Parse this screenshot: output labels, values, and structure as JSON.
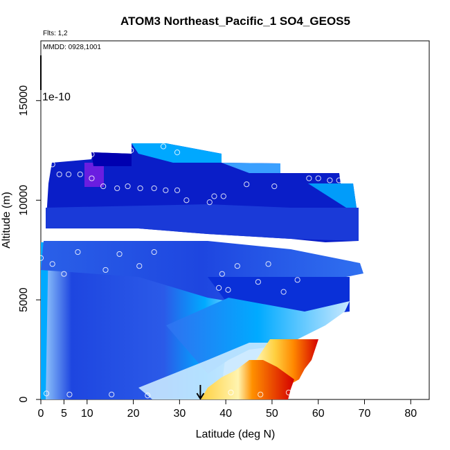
{
  "chart_data": {
    "type": "heatmap",
    "title": "ATOM3 Northeast_Pacific_1 SO4_GEOS5",
    "flights_label": "Flts: 1,2",
    "dates_label": "MMDD: 0928,1001",
    "xlabel": "Latitude (deg N)",
    "ylabel": "Altitude (m)",
    "xlim": [
      0,
      84
    ],
    "ylim": [
      0,
      18000
    ],
    "xticks": [
      0,
      5,
      10,
      20,
      30,
      40,
      50,
      60,
      70,
      80
    ],
    "yticks": [
      0,
      5000,
      10000,
      15000
    ],
    "colorbar_label": "1e-10",
    "arrow_latitude": 34.5,
    "colors": {
      "deep_blue": "#0000c8",
      "mid_blue": "#1e46e0",
      "light_blue": "#00aaff",
      "pale_blue": "#c8e8ff",
      "purple": "#6a1ee0",
      "yellow": "#ffe070",
      "orange": "#ff8800",
      "red": "#d40000"
    },
    "observations": [
      [
        1.2,
        300
      ],
      [
        6.2,
        250
      ],
      [
        15.3,
        250
      ],
      [
        23.1,
        200
      ],
      [
        47.5,
        250
      ],
      [
        53.6,
        350
      ],
      [
        41.1,
        350
      ],
      [
        0,
        7100
      ],
      [
        2.5,
        6800
      ],
      [
        5,
        6300
      ],
      [
        8,
        7400
      ],
      [
        14,
        6500
      ],
      [
        17,
        7300
      ],
      [
        21.3,
        6700
      ],
      [
        24.5,
        7400
      ],
      [
        39.2,
        6300
      ],
      [
        42.5,
        6700
      ],
      [
        38.5,
        5600
      ],
      [
        40.5,
        5500
      ],
      [
        47,
        5900
      ],
      [
        49.2,
        6800
      ],
      [
        52.5,
        5400
      ],
      [
        55.5,
        6000
      ],
      [
        70.5,
        6100
      ],
      [
        2.5,
        11800
      ],
      [
        4,
        11300
      ],
      [
        6,
        11300
      ],
      [
        8.5,
        11300
      ],
      [
        11,
        11100
      ],
      [
        11,
        12300
      ],
      [
        13.5,
        10700
      ],
      [
        16.5,
        10600
      ],
      [
        18.8,
        10700
      ],
      [
        21.5,
        10600
      ],
      [
        24.5,
        10600
      ],
      [
        27,
        10500
      ],
      [
        29.5,
        10500
      ],
      [
        31.5,
        10000
      ],
      [
        36.5,
        9900
      ],
      [
        37.5,
        10200
      ],
      [
        39.5,
        10200
      ],
      [
        44.5,
        10800
      ],
      [
        50.5,
        10700
      ],
      [
        58,
        11100
      ],
      [
        60,
        11100
      ],
      [
        62.5,
        11000
      ],
      [
        64.5,
        11000
      ],
      [
        68.5,
        10900
      ],
      [
        19.5,
        12500
      ],
      [
        26.5,
        12700
      ],
      [
        29.5,
        12400
      ]
    ]
  }
}
